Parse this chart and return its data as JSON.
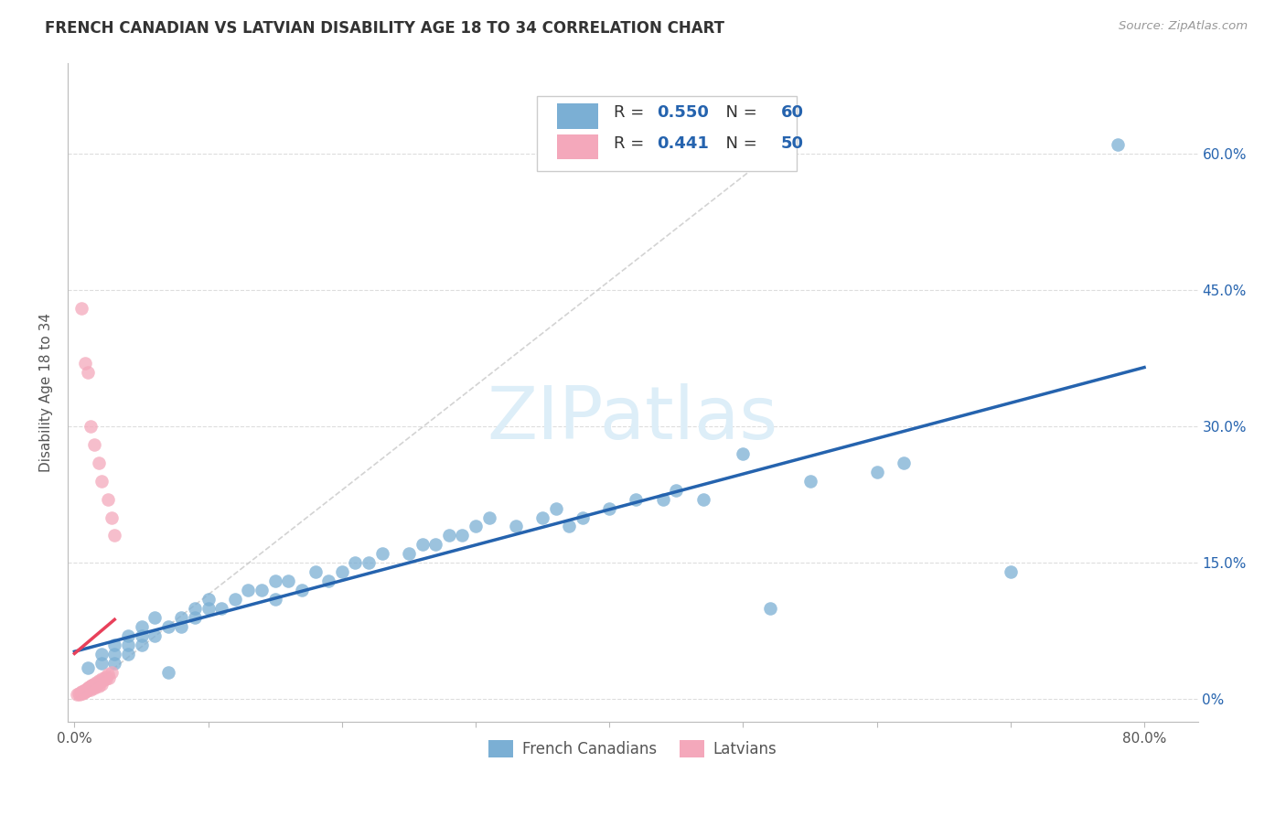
{
  "title": "FRENCH CANADIAN VS LATVIAN DISABILITY AGE 18 TO 34 CORRELATION CHART",
  "source": "Source: ZipAtlas.com",
  "ylabel": "Disability Age 18 to 34",
  "blue_color": "#7bafd4",
  "pink_color": "#f4a8bb",
  "trend_blue": "#2563ae",
  "trend_pink": "#e8405a",
  "xlim": [
    -0.005,
    0.84
  ],
  "ylim": [
    -0.025,
    0.7
  ],
  "x_tick_positions": [
    0.0,
    0.1,
    0.2,
    0.3,
    0.4,
    0.5,
    0.6,
    0.7,
    0.8
  ],
  "x_tick_labels": [
    "0.0%",
    "",
    "",
    "",
    "",
    "",
    "",
    "",
    "80.0%"
  ],
  "y_tick_positions": [
    0.0,
    0.15,
    0.3,
    0.45,
    0.6
  ],
  "y_tick_labels_right": [
    "0%",
    "15.0%",
    "30.0%",
    "45.0%",
    "60.0%"
  ],
  "fc_x": [
    0.01,
    0.02,
    0.02,
    0.03,
    0.03,
    0.03,
    0.04,
    0.04,
    0.04,
    0.05,
    0.05,
    0.05,
    0.06,
    0.06,
    0.07,
    0.07,
    0.08,
    0.08,
    0.09,
    0.09,
    0.1,
    0.1,
    0.11,
    0.12,
    0.13,
    0.14,
    0.15,
    0.15,
    0.16,
    0.17,
    0.18,
    0.19,
    0.2,
    0.21,
    0.22,
    0.23,
    0.25,
    0.26,
    0.27,
    0.28,
    0.29,
    0.3,
    0.31,
    0.33,
    0.35,
    0.36,
    0.37,
    0.38,
    0.4,
    0.42,
    0.44,
    0.45,
    0.47,
    0.5,
    0.52,
    0.55,
    0.6,
    0.62,
    0.7,
    0.78
  ],
  "fc_y": [
    0.035,
    0.04,
    0.05,
    0.04,
    0.05,
    0.06,
    0.05,
    0.06,
    0.07,
    0.06,
    0.07,
    0.08,
    0.07,
    0.09,
    0.03,
    0.08,
    0.08,
    0.09,
    0.09,
    0.1,
    0.1,
    0.11,
    0.1,
    0.11,
    0.12,
    0.12,
    0.11,
    0.13,
    0.13,
    0.12,
    0.14,
    0.13,
    0.14,
    0.15,
    0.15,
    0.16,
    0.16,
    0.17,
    0.17,
    0.18,
    0.18,
    0.19,
    0.2,
    0.19,
    0.2,
    0.21,
    0.19,
    0.2,
    0.21,
    0.22,
    0.22,
    0.23,
    0.22,
    0.27,
    0.1,
    0.24,
    0.25,
    0.26,
    0.14,
    0.61
  ],
  "lat_x": [
    0.002,
    0.003,
    0.004,
    0.005,
    0.005,
    0.006,
    0.006,
    0.007,
    0.007,
    0.008,
    0.008,
    0.009,
    0.009,
    0.01,
    0.01,
    0.011,
    0.011,
    0.012,
    0.012,
    0.013,
    0.013,
    0.014,
    0.014,
    0.015,
    0.015,
    0.016,
    0.016,
    0.017,
    0.018,
    0.018,
    0.019,
    0.02,
    0.02,
    0.021,
    0.022,
    0.023,
    0.024,
    0.025,
    0.026,
    0.028,
    0.005,
    0.008,
    0.01,
    0.012,
    0.015,
    0.018,
    0.02,
    0.025,
    0.028,
    0.03
  ],
  "lat_y": [
    0.005,
    0.006,
    0.005,
    0.007,
    0.008,
    0.006,
    0.008,
    0.007,
    0.009,
    0.008,
    0.01,
    0.009,
    0.011,
    0.01,
    0.012,
    0.011,
    0.013,
    0.01,
    0.014,
    0.012,
    0.015,
    0.013,
    0.016,
    0.012,
    0.015,
    0.014,
    0.018,
    0.016,
    0.014,
    0.02,
    0.018,
    0.016,
    0.022,
    0.02,
    0.022,
    0.025,
    0.022,
    0.028,
    0.024,
    0.03,
    0.43,
    0.37,
    0.36,
    0.3,
    0.28,
    0.26,
    0.24,
    0.22,
    0.2,
    0.18
  ]
}
